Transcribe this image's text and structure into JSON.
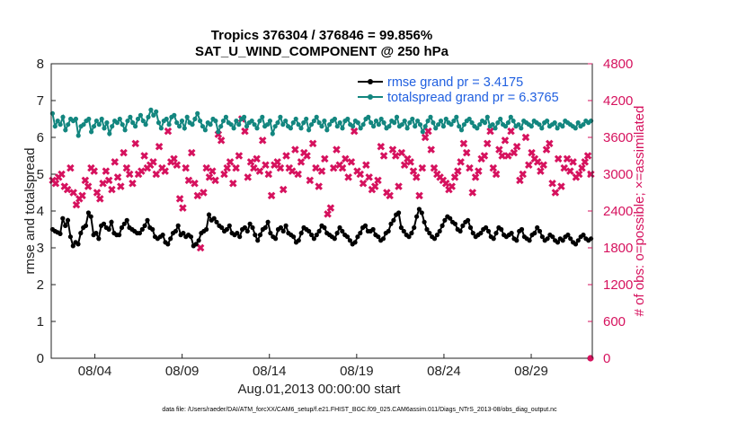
{
  "chart_data": {
    "type": "line",
    "title": "Tropics 376304 / 376846 = 99.856%",
    "subtitle": "SAT_U_WIND_COMPONENT @ 250 hPa",
    "xlabel": "Aug.01,2013 00:00:00 start",
    "ylabel": "rmse and totalspread",
    "y2label": "# of obs: o=possible; ×=assimilated",
    "footnote": "data file: /Users/raeder/DAI/ATM_forcXX/CAM6_setup/f.e21.FHIST_BGC.f09_025.CAM6assim.011/Diags_NTrS_2013-08/obs_diag_output.nc",
    "xlim": [
      1,
      32
    ],
    "ylim": [
      0,
      8
    ],
    "y2lim": [
      0,
      4800
    ],
    "x_ticks": [
      3.5,
      8.5,
      13.5,
      18.5,
      23.5,
      28.5
    ],
    "x_tick_labels": [
      "08/04",
      "08/09",
      "08/14",
      "08/19",
      "08/24",
      "08/29"
    ],
    "y_ticks": [
      "0",
      "1",
      "2",
      "3",
      "4",
      "5",
      "6",
      "7",
      "8"
    ],
    "y2_ticks": [
      "0",
      "600",
      "1200",
      "1800",
      "2400",
      "3000",
      "3600",
      "4200",
      "4800"
    ],
    "colors": {
      "rmse": "#000000",
      "spread": "#13867f",
      "obs": "#d6125e",
      "legend_text": "#1f5fe0"
    },
    "series": [
      {
        "name": "rmse grand pr = 3.4175",
        "marker": "circle",
        "values": [
          3.5,
          3.45,
          3.42,
          3.38,
          3.8,
          3.6,
          3.75,
          3.3,
          3.05,
          3.15,
          3.1,
          3.4,
          3.55,
          3.6,
          3.95,
          3.85,
          3.35,
          3.4,
          3.25,
          3.6,
          3.65,
          3.55,
          3.5,
          3.7,
          3.4,
          3.35,
          3.35,
          3.55,
          3.65,
          3.75,
          3.55,
          3.5,
          3.45,
          3.4,
          3.4,
          3.5,
          3.6,
          3.75,
          3.55,
          3.5,
          3.3,
          3.25,
          3.3,
          3.35,
          3.15,
          3.1,
          3.25,
          3.4,
          3.45,
          3.6,
          3.35,
          3.4,
          3.3,
          3.35,
          3.3,
          3.05,
          3.1,
          3.2,
          3.4,
          3.45,
          3.5,
          3.9,
          3.75,
          3.8,
          3.7,
          3.6,
          3.55,
          3.45,
          3.5,
          3.6,
          3.4,
          3.35,
          3.4,
          3.3,
          3.5,
          3.55,
          3.45,
          3.65,
          3.55,
          3.35,
          3.2,
          3.35,
          3.5,
          3.55,
          3.7,
          3.4,
          3.3,
          3.25,
          3.5,
          3.55,
          3.45,
          3.6,
          3.4,
          3.35,
          3.3,
          3.15,
          3.2,
          3.4,
          3.55,
          3.5,
          3.45,
          3.35,
          3.25,
          3.35,
          3.45,
          3.6,
          3.55,
          3.4,
          3.35,
          3.3,
          3.25,
          3.4,
          3.55,
          3.45,
          3.35,
          3.3,
          3.2,
          3.1,
          3.15,
          3.3,
          3.4,
          3.55,
          3.6,
          3.45,
          3.45,
          3.5,
          3.35,
          3.3,
          3.2,
          3.25,
          3.4,
          3.45,
          3.65,
          3.75,
          3.9,
          3.95,
          3.55,
          3.45,
          3.35,
          3.3,
          3.4,
          3.55,
          3.85,
          4.05,
          3.95,
          3.7,
          3.5,
          3.4,
          3.3,
          3.25,
          3.35,
          3.45,
          3.6,
          3.75,
          3.85,
          3.8,
          3.7,
          3.65,
          3.5,
          3.45,
          3.6,
          3.7,
          3.75,
          3.55,
          3.4,
          3.3,
          3.35,
          3.4,
          3.5,
          3.55,
          3.45,
          3.3,
          3.25,
          3.4,
          3.55,
          3.5,
          3.35,
          3.3,
          3.35,
          3.4,
          3.25,
          3.2,
          3.45,
          3.5,
          3.3,
          3.25,
          3.2,
          3.35,
          3.4,
          3.55,
          3.45,
          3.3,
          3.2,
          3.25,
          3.35,
          3.3,
          3.2,
          3.15,
          3.25,
          3.2,
          3.3,
          3.35,
          3.25,
          3.15,
          3.1,
          3.2,
          3.3,
          3.35,
          3.25,
          3.2,
          3.25
        ]
      },
      {
        "name": "totalspread grand pr = 6.3765",
        "marker": "circle",
        "values": [
          6.65,
          6.3,
          6.45,
          6.35,
          6.55,
          6.2,
          6.35,
          6.5,
          6.45,
          6.5,
          6.05,
          6.3,
          6.35,
          6.45,
          6.5,
          6.15,
          6.3,
          6.45,
          6.35,
          6.5,
          6.25,
          6.4,
          6.1,
          6.3,
          6.45,
          6.4,
          6.5,
          6.35,
          6.2,
          6.45,
          6.55,
          6.4,
          6.3,
          6.5,
          6.6,
          6.45,
          6.35,
          6.55,
          6.75,
          6.6,
          6.7,
          6.4,
          6.25,
          6.45,
          6.5,
          6.35,
          6.55,
          6.6,
          6.4,
          6.3,
          6.45,
          6.25,
          6.55,
          6.4,
          6.35,
          6.5,
          6.65,
          6.45,
          6.3,
          6.2,
          6.4,
          6.35,
          6.5,
          6.45,
          6.15,
          6.3,
          6.45,
          6.55,
          6.4,
          6.35,
          6.25,
          6.45,
          6.35,
          6.5,
          6.55,
          6.3,
          6.4,
          6.45,
          6.35,
          6.25,
          6.45,
          6.55,
          6.3,
          6.35,
          6.45,
          6.1,
          6.3,
          6.4,
          6.55,
          6.35,
          6.45,
          6.3,
          6.25,
          6.4,
          6.5,
          6.35,
          6.25,
          6.4,
          6.5,
          6.2,
          6.35,
          6.45,
          6.55,
          6.4,
          6.3,
          6.45,
          6.2,
          6.35,
          6.45,
          6.5,
          6.3,
          6.4,
          6.25,
          6.45,
          6.5,
          6.35,
          6.3,
          6.45,
          6.4,
          6.25,
          6.35,
          6.5,
          6.55,
          6.4,
          6.3,
          6.45,
          6.35,
          6.5,
          6.4,
          6.25,
          6.3,
          6.45,
          6.4,
          6.55,
          6.3,
          6.35,
          6.45,
          6.25,
          6.4,
          6.5,
          6.3,
          6.45,
          6.35,
          6.15,
          6.3,
          6.45,
          6.55,
          6.4,
          6.25,
          6.35,
          6.45,
          6.3,
          6.5,
          6.4,
          6.35,
          6.45,
          6.55,
          6.3,
          6.2,
          6.35,
          6.45,
          6.5,
          6.4,
          6.3,
          6.25,
          6.35,
          6.45,
          6.4,
          6.55,
          6.3,
          6.35,
          6.25,
          6.4,
          6.5,
          6.35,
          6.3,
          6.4,
          6.55,
          6.45,
          6.3,
          6.35,
          6.25,
          6.45,
          6.4,
          6.35,
          6.3,
          6.45,
          6.4,
          6.35,
          6.25,
          6.4,
          6.45,
          6.3,
          6.35,
          6.4,
          6.25,
          6.35,
          6.3,
          6.45,
          6.4,
          6.35,
          6.3,
          6.25,
          6.4,
          6.3,
          6.35,
          6.45,
          6.4,
          6.45
        ]
      },
      {
        "name": "obs assimilated",
        "marker": "x",
        "axis": "right",
        "values": [
          2900,
          2850,
          2950,
          3000,
          2800,
          2750,
          3100,
          2700,
          2500,
          2600,
          2650,
          2900,
          2800,
          3100,
          3050,
          2700,
          2600,
          2850,
          3050,
          2900,
          2750,
          3200,
          2950,
          2800,
          3350,
          3100,
          3000,
          2850,
          3500,
          3000,
          3050,
          3300,
          3100,
          3150,
          3200,
          3000,
          3450,
          3100,
          3050,
          3700,
          3200,
          3250,
          3150,
          2600,
          2450,
          3100,
          2900,
          3350,
          2850,
          2650,
          1800,
          2700,
          3100,
          2950,
          3050,
          2900,
          3650,
          3550,
          3000,
          3100,
          3200,
          2850,
          3100,
          3300,
          3900,
          3700,
          2950,
          3200,
          3100,
          3250,
          3050,
          3550,
          3150,
          3000,
          2650,
          3150,
          3200,
          3100,
          2750,
          3300,
          3100,
          3050,
          3400,
          3000,
          3200,
          3350,
          3300,
          2900,
          3500,
          3100,
          2800,
          3050,
          3250,
          2350,
          2450,
          3100,
          3400,
          3150,
          3100,
          3250,
          2950,
          3200,
          3700,
          3050,
          3000,
          2850,
          3150,
          2950,
          2750,
          2800,
          2900,
          3450,
          3300,
          2700,
          2650,
          3400,
          3300,
          2800,
          3350,
          3150,
          3250,
          3200,
          3050,
          2950,
          2650,
          3100,
          3600,
          3700,
          3400,
          3100,
          3000,
          2950,
          2900,
          2850,
          2750,
          2800,
          2950,
          3050,
          3200,
          3500,
          3350,
          3100,
          2700,
          2950,
          3050,
          3250,
          3300,
          3500,
          3700,
          3100,
          3000,
          3400,
          3300,
          3550,
          3300,
          3700,
          3350,
          3450,
          2900,
          3000,
          3600,
          3150,
          3350,
          3250,
          3200,
          3050,
          3150,
          3400,
          3500,
          2850,
          2700,
          3250,
          2800,
          3100,
          3250,
          3050,
          3200,
          2950,
          3000,
          3100,
          3200,
          3300,
          3000
        ]
      },
      {
        "name": "obs possible",
        "marker": "circle",
        "axis": "right",
        "values": [
          0
        ]
      }
    ],
    "legend": [
      "rmse grand pr = 3.4175",
      "totalspread grand pr = 6.3765"
    ],
    "legend_position": "top-right"
  }
}
